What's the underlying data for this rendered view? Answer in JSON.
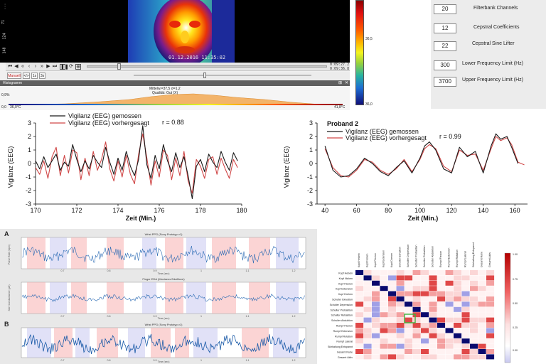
{
  "viewer": {
    "timestamp": "01.12.2016 11:35:02",
    "time_current": "0:09:27.2",
    "time_total": "0:09:36.8",
    "left_scale": [
      "...",
      "71",
      "124",
      "148"
    ],
    "mode_button": "Manuell",
    "btn_fit": "</>",
    "btn_1s": "1s",
    "btn_3s": "3s",
    "histogram_title": "Histogramm",
    "histogram_stats": "Mittelw.=37,5 σ=1,2",
    "histogram_quality": "Qualität: Gut (X)",
    "hist_left_top": "0,9%",
    "hist_left_min": "0,0",
    "hist_left_temp": "36,0°C",
    "hist_right_temp": "41,8°C",
    "transport_icons": [
      "skip-start-icon",
      "prev-frame-icon",
      "rewind-icon",
      "back-icon",
      "forward-icon",
      "fast-forward-icon",
      "next-frame-icon",
      "skip-end-icon",
      "play-icon",
      "pause-icon",
      "loop-icon",
      "zoom-icon"
    ],
    "colorbar": {
      "labels": [
        "36,5",
        "36,0"
      ],
      "gradient": [
        "#8b0000",
        "#e01010",
        "#ff5a00",
        "#ffb400",
        "#f4f41e",
        "#9ad23c",
        "#28b4a0",
        "#1e6ed2",
        "#10107a"
      ]
    }
  },
  "params": [
    {
      "value": "20",
      "label": "Filterbank Channels"
    },
    {
      "value": "12",
      "label": "Cepstral Coefficients"
    },
    {
      "value": "22",
      "label": "Cepstral Sine Lifter"
    },
    {
      "value": "300",
      "label": "Lower Frequency Limit (Hz)"
    },
    {
      "value": "3700",
      "label": "Upper Frequency Limit (Hz)"
    }
  ],
  "chart_data": [
    {
      "type": "line",
      "title": "",
      "xlabel": "Zeit (Min.)",
      "ylabel": "Vigilanz (EEG)",
      "xlim": [
        170,
        180
      ],
      "ylim": [
        -3,
        3
      ],
      "xticks": [
        "170",
        "172",
        "174",
        "176",
        "178",
        "180"
      ],
      "yticks": [
        "-3",
        "-2",
        "-1",
        "0",
        "1",
        "2",
        "3"
      ],
      "annotation": "r = 0.88",
      "series": [
        {
          "name": "Vigilanz (EEG) gemossen",
          "color": "#1a1a1a",
          "x": [
            170.0,
            170.2,
            170.4,
            170.6,
            170.8,
            171.0,
            171.2,
            171.4,
            171.6,
            171.8,
            172.0,
            172.2,
            172.4,
            172.6,
            172.8,
            173.0,
            173.2,
            173.4,
            173.6,
            173.8,
            174.0,
            174.2,
            174.4,
            174.6,
            174.8,
            175.0,
            175.2,
            175.4,
            175.6,
            175.8,
            176.0,
            176.2,
            176.4,
            176.6,
            176.8,
            177.0,
            177.2,
            177.4,
            177.6,
            177.8,
            178.0,
            178.2,
            178.4,
            178.6,
            178.8,
            179.0,
            179.2,
            179.4,
            179.6,
            179.8
          ],
          "y": [
            0.2,
            -0.4,
            0.5,
            -0.3,
            0.2,
            0.7,
            -0.5,
            0.1,
            -0.2,
            1.4,
            0.3,
            -0.6,
            0.2,
            -0.4,
            0.6,
            0.1,
            -0.3,
            1.2,
            0.1,
            -0.8,
            0.4,
            -0.5,
            0.9,
            -0.2,
            -0.9,
            0.3,
            2.8,
            -0.1,
            -1.1,
            0.6,
            -0.4,
            1.4,
            0.2,
            -0.6,
            0.8,
            -0.3,
            0.5,
            -0.9,
            -2.6,
            -0.2,
            0.3,
            -0.6,
            0.7,
            0.1,
            -0.3,
            0.9,
            0.1,
            -0.5,
            0.8,
            0.2
          ]
        },
        {
          "name": "Vigilanz (EEG) vorhergesagt",
          "color": "#d04848",
          "x": [
            170.0,
            170.2,
            170.4,
            170.6,
            170.8,
            171.0,
            171.2,
            171.4,
            171.6,
            171.8,
            172.0,
            172.2,
            172.4,
            172.6,
            172.8,
            173.0,
            173.2,
            173.4,
            173.6,
            173.8,
            174.0,
            174.2,
            174.4,
            174.6,
            174.8,
            175.0,
            175.2,
            175.4,
            175.6,
            175.8,
            176.0,
            176.2,
            176.4,
            176.6,
            176.8,
            177.0,
            177.2,
            177.4,
            177.6,
            177.8,
            178.0,
            178.2,
            178.4,
            178.6,
            178.8,
            179.0,
            179.2,
            179.4,
            179.6,
            179.8
          ],
          "y": [
            -0.3,
            -0.8,
            0.2,
            -1.1,
            0.5,
            1.2,
            -0.9,
            0.6,
            -0.7,
            1.0,
            0.8,
            -1.2,
            0.4,
            -0.9,
            0.9,
            -0.5,
            0.3,
            1.6,
            -0.4,
            -1.3,
            0.2,
            -1.0,
            0.6,
            -0.8,
            -1.5,
            0.7,
            2.2,
            0.4,
            -1.6,
            0.2,
            -1.0,
            1.0,
            0.6,
            -1.2,
            0.4,
            -0.9,
            0.9,
            -1.3,
            -2.2,
            0.3,
            -0.2,
            -1.1,
            0.3,
            0.5,
            -0.8,
            0.4,
            -0.4,
            -1.1,
            0.3,
            -0.3
          ]
        }
      ]
    },
    {
      "type": "line",
      "title": "Proband 2",
      "xlabel": "Zeit (Min.)",
      "ylabel": "Vigilanz (EEG)",
      "xlim": [
        35,
        168
      ],
      "ylim": [
        -3,
        3
      ],
      "xticks": [
        "40",
        "60",
        "80",
        "100",
        "120",
        "140",
        "160"
      ],
      "yticks": [
        "-3",
        "-2",
        "-1",
        "0",
        "1",
        "2",
        "3"
      ],
      "annotation": "r = 0.99",
      "series": [
        {
          "name": "Vigilanz (EEG) gemossen",
          "color": "#1a1a1a",
          "x": [
            40,
            45,
            50,
            55,
            60,
            65,
            70,
            75,
            80,
            85,
            90,
            95,
            100,
            103,
            106,
            110,
            115,
            120,
            125,
            130,
            135,
            140,
            145,
            148,
            151,
            155,
            158,
            162
          ],
          "y": [
            1.3,
            -0.5,
            -1.0,
            -0.9,
            -0.4,
            0.4,
            0.0,
            -0.6,
            -0.9,
            -0.3,
            0.2,
            -0.7,
            0.4,
            1.3,
            1.6,
            1.0,
            -0.4,
            -0.7,
            1.2,
            0.5,
            0.9,
            -0.7,
            1.3,
            2.2,
            1.8,
            2.0,
            1.2,
            0.0
          ]
        },
        {
          "name": "Vigilanz (EEG) vorhergesagt",
          "color": "#d04848",
          "x": [
            40,
            45,
            50,
            55,
            60,
            65,
            70,
            75,
            80,
            85,
            90,
            95,
            100,
            103,
            106,
            110,
            115,
            120,
            125,
            130,
            135,
            140,
            145,
            148,
            151,
            155,
            158,
            162,
            166
          ],
          "y": [
            1.1,
            -0.3,
            -0.9,
            -1.0,
            -0.5,
            0.3,
            0.1,
            -0.5,
            -0.8,
            -0.4,
            0.3,
            -0.6,
            0.3,
            1.1,
            1.4,
            1.1,
            -0.2,
            -0.6,
            1.0,
            0.6,
            0.7,
            -0.5,
            1.1,
            2.0,
            1.7,
            1.9,
            1.4,
            0.1,
            -0.1
          ]
        }
      ]
    }
  ],
  "bottom_left": {
    "panel_a": "A",
    "panel_b": "B",
    "plot1_title": "Wrist PPG (Sony Prototyp v1)",
    "plot2_title": "Finger EDA (Movisens EdaMove)",
    "plot3_title": "Wrist PPG (Sony Prototyp v1)",
    "xlabel": "Time (sec)",
    "ylabel1": "Pulse Rate (bpm)",
    "ylabel2": "Skin Conductance (µS)",
    "xticks": [
      "0.7",
      "0.8",
      "0.9",
      "1",
      "1.1",
      "1.2"
    ]
  },
  "matrix": {
    "row_labels": [
      "Kopf Hebeln",
      "Kopf Nicken",
      "Kopf Flexion",
      "Kopf Extension",
      "Kopf Drehen",
      "Schulter Elevation",
      "Schulter Depression",
      "Schulter Protraktion",
      "Schulter Retraktion",
      "Schulter Abduktion",
      "Rumpf Flexion",
      "Rumpf Extension",
      "Rumpf Rotation",
      "Rumpf Lateral",
      "Sitzhaltung Entspannt",
      "Gesamt Ruhe",
      "Gesamt Aktiv"
    ],
    "colorbar_labels": [
      "1.00",
      "0.75",
      "0.50",
      "0.25",
      "0.00"
    ]
  }
}
